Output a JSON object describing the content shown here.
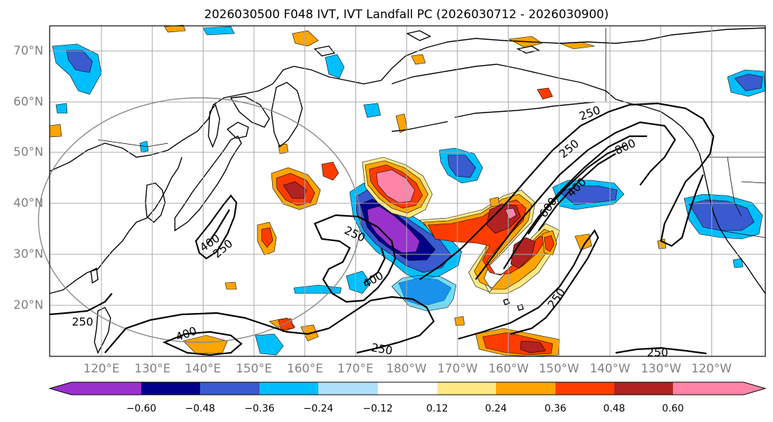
{
  "title": "2026030500 F048 IVT, IVT Landfall PC (2026030712 - 2026030900)",
  "map": {
    "lat_labels": [
      "70°N",
      "60°N",
      "50°N",
      "40°N",
      "30°N",
      "20°N"
    ],
    "lon_labels": [
      "120°E",
      "130°E",
      "140°E",
      "150°E",
      "160°E",
      "170°E",
      "180°W",
      "170°W",
      "160°W",
      "150°W",
      "140°W",
      "130°W",
      "120°W"
    ],
    "lat_range": [
      10,
      75
    ],
    "grid": true,
    "ivt_contour_labels": [
      "250",
      "250",
      "800",
      "400",
      "600",
      "250",
      "400",
      "250",
      "400",
      "250",
      "250",
      "400",
      "250",
      "250"
    ]
  },
  "colorbar": {
    "ticks": [
      "−0.60",
      "−0.48",
      "−0.36",
      "−0.24",
      "−0.12",
      "0.12",
      "0.24",
      "0.36",
      "0.48",
      "0.60"
    ],
    "colors": [
      "#9932cc",
      "#00008b",
      "#3a5ad0",
      "#00bfff",
      "#afe0fa",
      "#ffffff",
      "#ffe985",
      "#ffa500",
      "#ff3c00",
      "#b22222",
      "#ff85a8"
    ],
    "extend": "both"
  }
}
